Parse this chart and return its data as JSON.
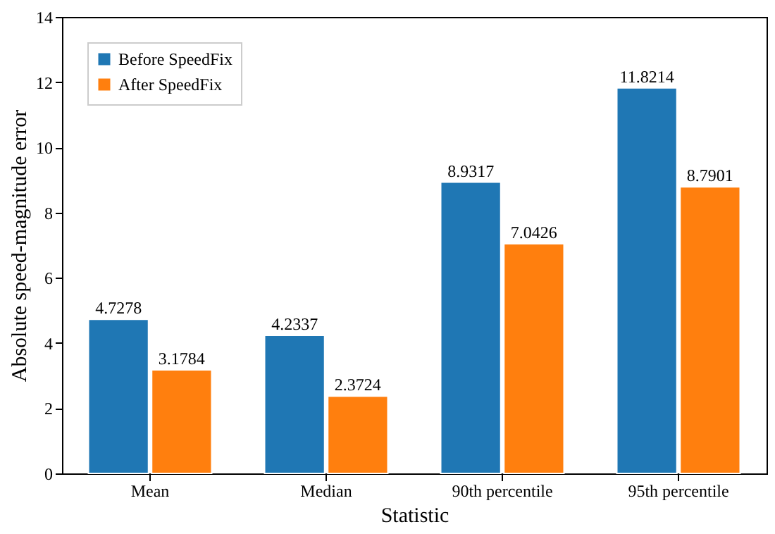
{
  "chart_data": {
    "type": "bar",
    "xlabel": "Statistic",
    "ylabel": "Absolute speed-magnitude error",
    "categories": [
      "Mean",
      "Median",
      "90th percentile",
      "95th percentile"
    ],
    "series": [
      {
        "name": "Before SpeedFix",
        "color": "#1f77b4",
        "values": [
          4.7278,
          4.2337,
          8.9317,
          11.8214
        ]
      },
      {
        "name": "After SpeedFix",
        "color": "#ff7f0e",
        "values": [
          3.1784,
          2.3724,
          7.0426,
          8.7901
        ]
      }
    ],
    "ylim": [
      0,
      14
    ],
    "yticks": [
      0,
      2,
      4,
      6,
      8,
      10,
      12,
      14
    ],
    "data_labels": true,
    "legend": "top left",
    "grid": false
  }
}
